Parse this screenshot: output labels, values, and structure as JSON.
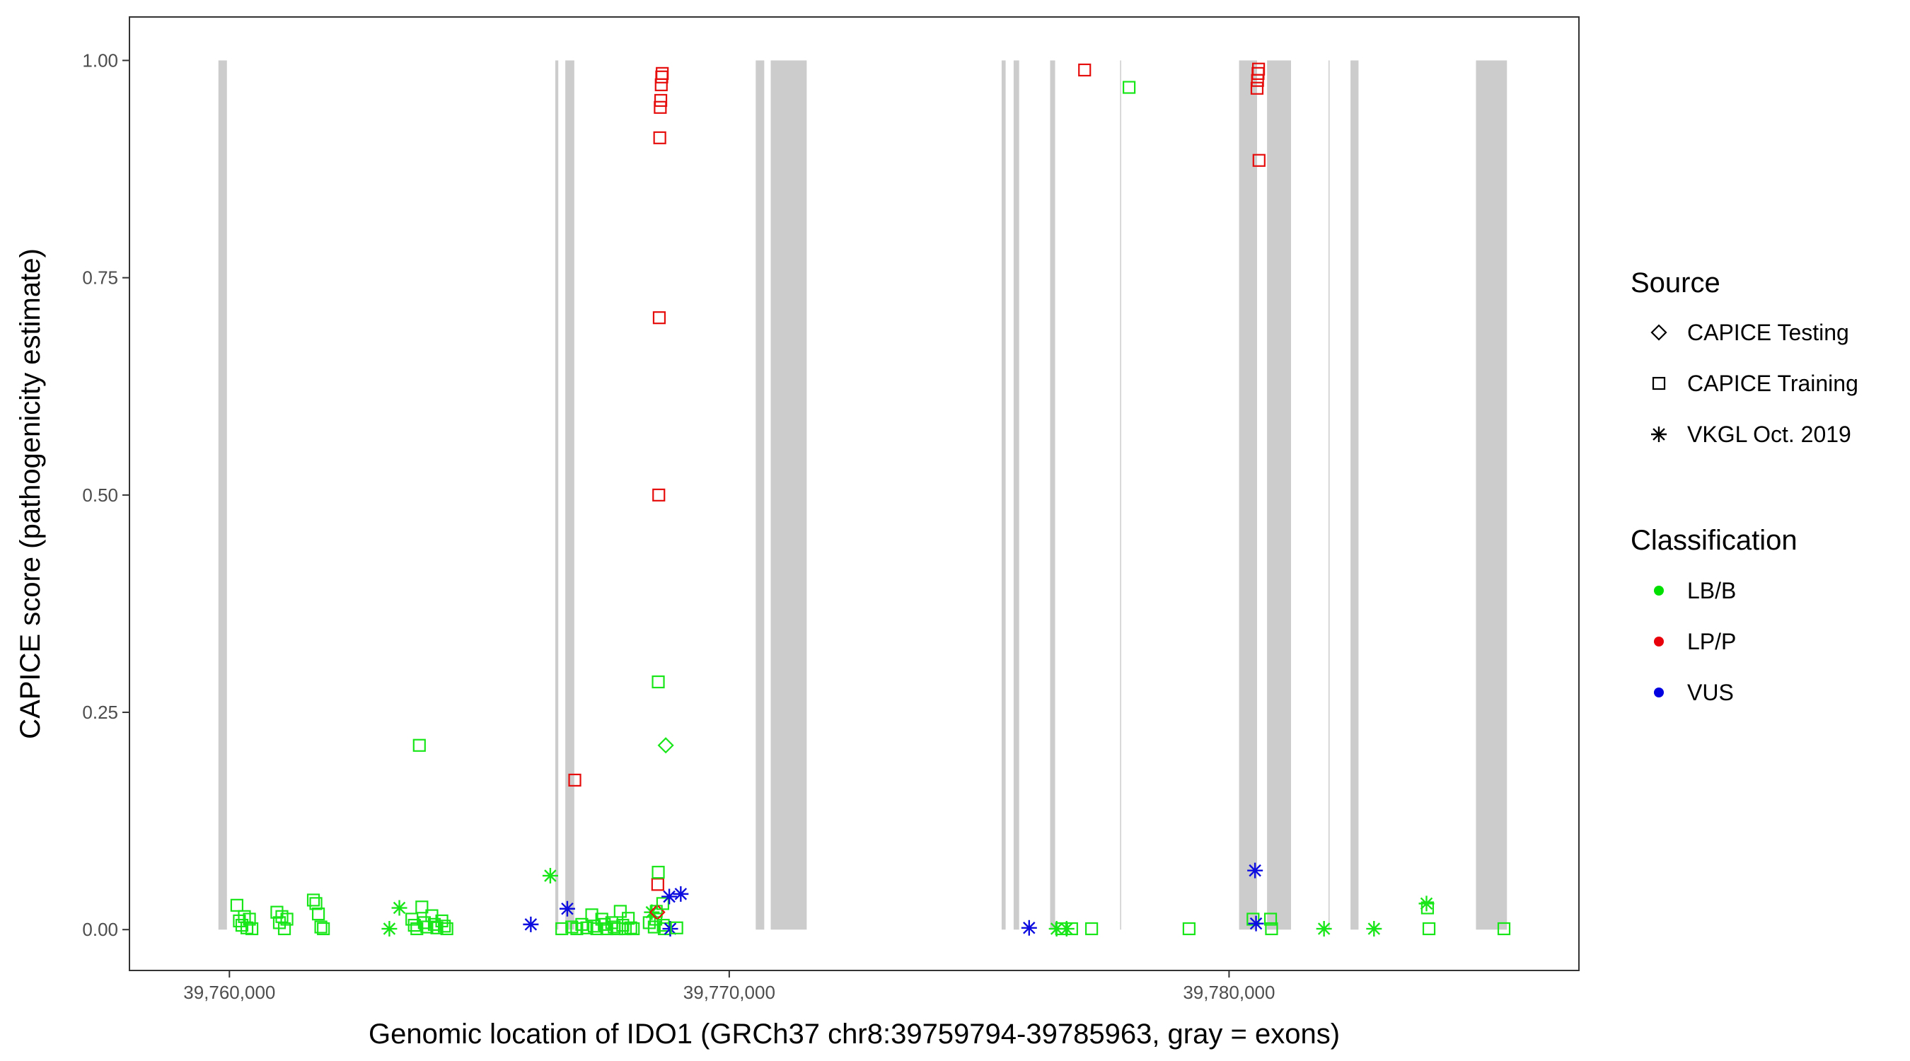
{
  "chart_data": {
    "type": "scatter",
    "title": "",
    "xlabel": "Genomic location of IDO1 (GRCh37 chr8:39759794-39785963, gray = exons)",
    "ylabel": "CAPICE score (pathogenicity estimate)",
    "xlim": [
      39758000,
      39787000
    ],
    "ylim": [
      -0.047,
      1.05
    ],
    "x_ticks": [
      39760000,
      39770000,
      39780000
    ],
    "x_tick_labels": [
      "39,760,000",
      "39,770,000",
      "39,780,000"
    ],
    "y_ticks": [
      0,
      0.25,
      0.5,
      0.75,
      1.0
    ],
    "y_tick_labels": [
      "0.00",
      "0.25",
      "0.50",
      "0.75",
      "1.00"
    ],
    "grid": false,
    "legend_position": "right",
    "exons": [
      [
        39759780,
        39759950
      ],
      [
        39766520,
        39766580
      ],
      [
        39766720,
        39766900
      ],
      [
        39770530,
        39770700
      ],
      [
        39770830,
        39771550
      ],
      [
        39775450,
        39775530
      ],
      [
        39775690,
        39775800
      ],
      [
        39776420,
        39776520
      ],
      [
        39777820,
        39777840
      ],
      [
        39780200,
        39780560
      ],
      [
        39780760,
        39781240
      ],
      [
        39781990,
        39782010
      ],
      [
        39782430,
        39782590
      ],
      [
        39784940,
        39785560
      ]
    ],
    "legend_source": {
      "title": "Source",
      "items": [
        {
          "label": "CAPICE Testing",
          "shape": "diamond"
        },
        {
          "label": "CAPICE Training",
          "shape": "square"
        },
        {
          "label": "VKGL Oct. 2019",
          "shape": "asterisk"
        }
      ]
    },
    "legend_classification": {
      "title": "Classification",
      "items": [
        {
          "label": "LB/B",
          "color": "#00e000"
        },
        {
          "label": "LP/P",
          "color": "#e8000b"
        },
        {
          "label": "VUS",
          "color": "#0000e0"
        }
      ]
    },
    "colors": {
      "LB/B": "#19e619",
      "LP/P": "#e60d0d",
      "VUS": "#0d0de0",
      "exon": "#cccccc"
    },
    "points": [
      {
        "x": 39760150,
        "y": 0.028,
        "shape": "square",
        "class": "LB/B"
      },
      {
        "x": 39760200,
        "y": 0.01,
        "shape": "square",
        "class": "LB/B"
      },
      {
        "x": 39760250,
        "y": 0.005,
        "shape": "square",
        "class": "LB/B"
      },
      {
        "x": 39760300,
        "y": 0.015,
        "shape": "square",
        "class": "LB/B"
      },
      {
        "x": 39760350,
        "y": 0.002,
        "shape": "square",
        "class": "LB/B"
      },
      {
        "x": 39760400,
        "y": 0.012,
        "shape": "square",
        "class": "LB/B"
      },
      {
        "x": 39760450,
        "y": 0.001,
        "shape": "square",
        "class": "LB/B"
      },
      {
        "x": 39760950,
        "y": 0.02,
        "shape": "square",
        "class": "LB/B"
      },
      {
        "x": 39761000,
        "y": 0.008,
        "shape": "square",
        "class": "LB/B"
      },
      {
        "x": 39761050,
        "y": 0.015,
        "shape": "square",
        "class": "LB/B"
      },
      {
        "x": 39761100,
        "y": 0.001,
        "shape": "square",
        "class": "LB/B"
      },
      {
        "x": 39761150,
        "y": 0.012,
        "shape": "square",
        "class": "LB/B"
      },
      {
        "x": 39761680,
        "y": 0.034,
        "shape": "square",
        "class": "LB/B"
      },
      {
        "x": 39761730,
        "y": 0.03,
        "shape": "square",
        "class": "LB/B"
      },
      {
        "x": 39761780,
        "y": 0.018,
        "shape": "square",
        "class": "LB/B"
      },
      {
        "x": 39761830,
        "y": 0.003,
        "shape": "square",
        "class": "LB/B"
      },
      {
        "x": 39761880,
        "y": 0.001,
        "shape": "square",
        "class": "LB/B"
      },
      {
        "x": 39763200,
        "y": 0.001,
        "shape": "asterisk",
        "class": "LB/B"
      },
      {
        "x": 39763400,
        "y": 0.025,
        "shape": "asterisk",
        "class": "LB/B"
      },
      {
        "x": 39763650,
        "y": 0.012,
        "shape": "square",
        "class": "LB/B"
      },
      {
        "x": 39763700,
        "y": 0.005,
        "shape": "square",
        "class": "LB/B"
      },
      {
        "x": 39763750,
        "y": 0.001,
        "shape": "square",
        "class": "LB/B"
      },
      {
        "x": 39763800,
        "y": 0.212,
        "shape": "square",
        "class": "LB/B"
      },
      {
        "x": 39763850,
        "y": 0.026,
        "shape": "square",
        "class": "LB/B"
      },
      {
        "x": 39763900,
        "y": 0.008,
        "shape": "square",
        "class": "LB/B"
      },
      {
        "x": 39763950,
        "y": 0.003,
        "shape": "square",
        "class": "LB/B"
      },
      {
        "x": 39764050,
        "y": 0.016,
        "shape": "square",
        "class": "LB/B"
      },
      {
        "x": 39764100,
        "y": 0.006,
        "shape": "square",
        "class": "LB/B"
      },
      {
        "x": 39764150,
        "y": 0.002,
        "shape": "square",
        "class": "LB/B"
      },
      {
        "x": 39764250,
        "y": 0.01,
        "shape": "square",
        "class": "LB/B"
      },
      {
        "x": 39764300,
        "y": 0.004,
        "shape": "square",
        "class": "LB/B"
      },
      {
        "x": 39764350,
        "y": 0.001,
        "shape": "square",
        "class": "LB/B"
      },
      {
        "x": 39766030,
        "y": 0.006,
        "shape": "asterisk",
        "class": "VUS"
      },
      {
        "x": 39766420,
        "y": 0.062,
        "shape": "asterisk",
        "class": "LB/B"
      },
      {
        "x": 39766650,
        "y": 0.001,
        "shape": "square",
        "class": "LB/B"
      },
      {
        "x": 39766760,
        "y": 0.024,
        "shape": "asterisk",
        "class": "VUS"
      },
      {
        "x": 39766850,
        "y": 0.003,
        "shape": "square",
        "class": "LB/B"
      },
      {
        "x": 39766950,
        "y": 0.001,
        "shape": "square",
        "class": "LB/B"
      },
      {
        "x": 39766910,
        "y": 0.172,
        "shape": "square",
        "class": "LP/P"
      },
      {
        "x": 39767050,
        "y": 0.006,
        "shape": "square",
        "class": "LB/B"
      },
      {
        "x": 39767150,
        "y": 0.002,
        "shape": "square",
        "class": "LB/B"
      },
      {
        "x": 39767250,
        "y": 0.017,
        "shape": "square",
        "class": "LB/B"
      },
      {
        "x": 39767300,
        "y": 0.004,
        "shape": "square",
        "class": "LB/B"
      },
      {
        "x": 39767350,
        "y": 0.001,
        "shape": "square",
        "class": "LB/B"
      },
      {
        "x": 39767450,
        "y": 0.012,
        "shape": "square",
        "class": "LB/B"
      },
      {
        "x": 39767500,
        "y": 0.006,
        "shape": "square",
        "class": "LB/B"
      },
      {
        "x": 39767550,
        "y": 0.001,
        "shape": "square",
        "class": "LB/B"
      },
      {
        "x": 39767650,
        "y": 0.008,
        "shape": "square",
        "class": "LB/B"
      },
      {
        "x": 39767700,
        "y": 0.003,
        "shape": "square",
        "class": "LB/B"
      },
      {
        "x": 39767750,
        "y": 0.001,
        "shape": "square",
        "class": "LB/B"
      },
      {
        "x": 39767820,
        "y": 0.021,
        "shape": "square",
        "class": "LB/B"
      },
      {
        "x": 39767870,
        "y": 0.005,
        "shape": "square",
        "class": "LB/B"
      },
      {
        "x": 39767920,
        "y": 0.001,
        "shape": "square",
        "class": "LB/B"
      },
      {
        "x": 39767980,
        "y": 0.013,
        "shape": "square",
        "class": "LB/B"
      },
      {
        "x": 39768030,
        "y": 0.002,
        "shape": "square",
        "class": "LB/B"
      },
      {
        "x": 39768080,
        "y": 0.001,
        "shape": "square",
        "class": "LB/B"
      },
      {
        "x": 39768400,
        "y": 0.008,
        "shape": "square",
        "class": "LB/B"
      },
      {
        "x": 39768450,
        "y": 0.02,
        "shape": "asterisk",
        "class": "LB/B"
      },
      {
        "x": 39768500,
        "y": 0.003,
        "shape": "square",
        "class": "LB/B"
      },
      {
        "x": 39768530,
        "y": 0.012,
        "shape": "square",
        "class": "LB/B"
      },
      {
        "x": 39768540,
        "y": 0.021,
        "shape": "square",
        "class": "LB/B"
      },
      {
        "x": 39768560,
        "y": 0.02,
        "shape": "diamond",
        "class": "LP/P"
      },
      {
        "x": 39768570,
        "y": 0.052,
        "shape": "square",
        "class": "LP/P"
      },
      {
        "x": 39768580,
        "y": 0.066,
        "shape": "square",
        "class": "LB/B"
      },
      {
        "x": 39768590,
        "y": 0.5,
        "shape": "square",
        "class": "LP/P"
      },
      {
        "x": 39768600,
        "y": 0.704,
        "shape": "square",
        "class": "LP/P"
      },
      {
        "x": 39768610,
        "y": 0.911,
        "shape": "square",
        "class": "LP/P"
      },
      {
        "x": 39768620,
        "y": 0.946,
        "shape": "square",
        "class": "LP/P"
      },
      {
        "x": 39768630,
        "y": 0.954,
        "shape": "square",
        "class": "LP/P"
      },
      {
        "x": 39768640,
        "y": 0.972,
        "shape": "square",
        "class": "LP/P"
      },
      {
        "x": 39768650,
        "y": 0.981,
        "shape": "square",
        "class": "LP/P"
      },
      {
        "x": 39768660,
        "y": 0.985,
        "shape": "square",
        "class": "LP/P"
      },
      {
        "x": 39768580,
        "y": 0.285,
        "shape": "square",
        "class": "LB/B"
      },
      {
        "x": 39768670,
        "y": 0.03,
        "shape": "square",
        "class": "LB/B"
      },
      {
        "x": 39768680,
        "y": 0.005,
        "shape": "square",
        "class": "LB/B"
      },
      {
        "x": 39768700,
        "y": 0.001,
        "shape": "square",
        "class": "LB/B"
      },
      {
        "x": 39768730,
        "y": 0.212,
        "shape": "diamond",
        "class": "LB/B"
      },
      {
        "x": 39768800,
        "y": 0.038,
        "shape": "asterisk",
        "class": "VUS"
      },
      {
        "x": 39768820,
        "y": 0.001,
        "shape": "asterisk",
        "class": "VUS"
      },
      {
        "x": 39768950,
        "y": 0.002,
        "shape": "square",
        "class": "LB/B"
      },
      {
        "x": 39769030,
        "y": 0.041,
        "shape": "asterisk",
        "class": "VUS"
      },
      {
        "x": 39776000,
        "y": 0.002,
        "shape": "asterisk",
        "class": "VUS"
      },
      {
        "x": 39776550,
        "y": 0.001,
        "shape": "asterisk",
        "class": "LB/B"
      },
      {
        "x": 39776650,
        "y": 0.001,
        "shape": "square",
        "class": "LB/B"
      },
      {
        "x": 39776750,
        "y": 0.001,
        "shape": "asterisk",
        "class": "LB/B"
      },
      {
        "x": 39776850,
        "y": 0.001,
        "shape": "square",
        "class": "LB/B"
      },
      {
        "x": 39777110,
        "y": 0.989,
        "shape": "square",
        "class": "LP/P"
      },
      {
        "x": 39777250,
        "y": 0.001,
        "shape": "square",
        "class": "LB/B"
      },
      {
        "x": 39778000,
        "y": 0.969,
        "shape": "square",
        "class": "LB/B"
      },
      {
        "x": 39779200,
        "y": 0.001,
        "shape": "square",
        "class": "LB/B"
      },
      {
        "x": 39780480,
        "y": 0.012,
        "shape": "square",
        "class": "LB/B"
      },
      {
        "x": 39780520,
        "y": 0.068,
        "shape": "asterisk",
        "class": "VUS"
      },
      {
        "x": 39780540,
        "y": 0.007,
        "shape": "asterisk",
        "class": "VUS"
      },
      {
        "x": 39780560,
        "y": 0.968,
        "shape": "square",
        "class": "LP/P"
      },
      {
        "x": 39780570,
        "y": 0.977,
        "shape": "square",
        "class": "LP/P"
      },
      {
        "x": 39780580,
        "y": 0.985,
        "shape": "square",
        "class": "LP/P"
      },
      {
        "x": 39780590,
        "y": 0.99,
        "shape": "square",
        "class": "LP/P"
      },
      {
        "x": 39780600,
        "y": 0.885,
        "shape": "square",
        "class": "LP/P"
      },
      {
        "x": 39780830,
        "y": 0.012,
        "shape": "square",
        "class": "LB/B"
      },
      {
        "x": 39780850,
        "y": 0.001,
        "shape": "square",
        "class": "LB/B"
      },
      {
        "x": 39781900,
        "y": 0.001,
        "shape": "asterisk",
        "class": "LB/B"
      },
      {
        "x": 39782900,
        "y": 0.001,
        "shape": "asterisk",
        "class": "LB/B"
      },
      {
        "x": 39783950,
        "y": 0.03,
        "shape": "asterisk",
        "class": "LB/B"
      },
      {
        "x": 39783970,
        "y": 0.025,
        "shape": "square",
        "class": "LB/B"
      },
      {
        "x": 39784000,
        "y": 0.001,
        "shape": "square",
        "class": "LB/B"
      },
      {
        "x": 39785500,
        "y": 0.001,
        "shape": "square",
        "class": "LB/B"
      }
    ]
  }
}
